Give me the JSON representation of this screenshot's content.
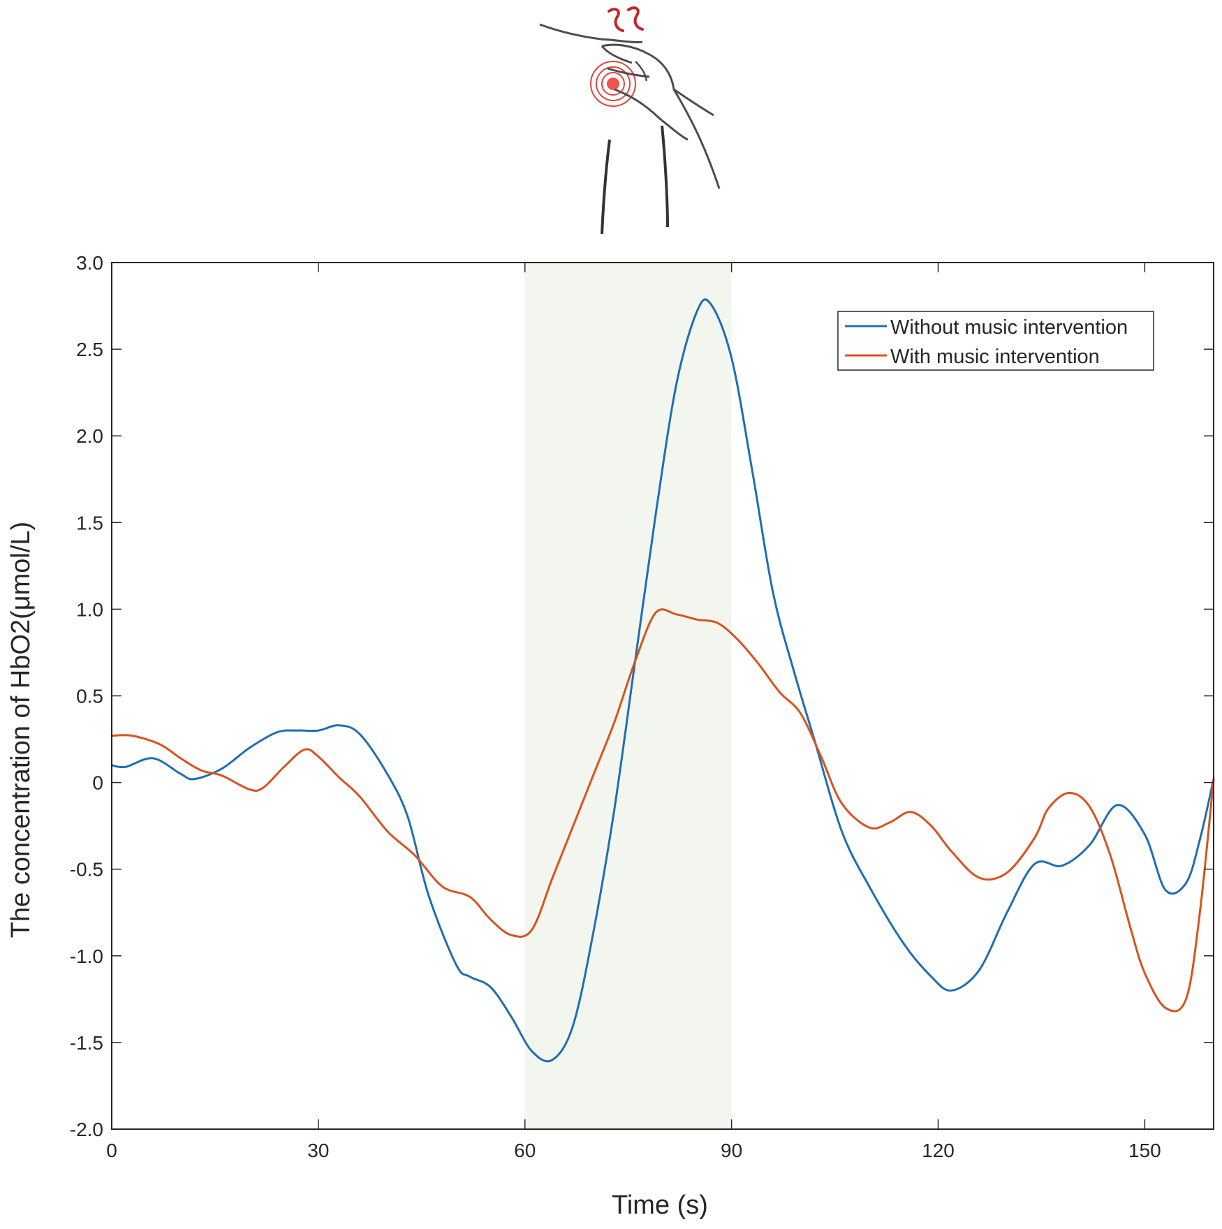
{
  "chart_data": {
    "type": "line",
    "xlabel": "Time (s)",
    "ylabel": "The concentration of  HbO2(μmol/L)",
    "xlim": [
      0,
      160
    ],
    "ylim": [
      -2.0,
      3.0
    ],
    "xticks": [
      0,
      30,
      60,
      90,
      120,
      150
    ],
    "xtick_labels": [
      "0",
      "30",
      "60",
      "90",
      "120",
      "150"
    ],
    "yticks": [
      3.0,
      2.5,
      2.0,
      1.5,
      1.0,
      0.5,
      0,
      -0.5,
      -1.0,
      -1.5,
      -2.0
    ],
    "ytick_labels": [
      "3.0",
      "2.5",
      "2.0",
      "1.5",
      "1.0",
      "0.5",
      "0",
      "-0.5",
      "-1.0",
      "-1.5",
      "-2.0"
    ],
    "grid": false,
    "legend_position": "top-right",
    "highlight_region": {
      "x_start": 60,
      "x_end": 90,
      "color": "#f3f6ef"
    },
    "series": [
      {
        "name": "Without music intervention",
        "color": "#1f6eb4",
        "x": [
          0,
          2,
          6,
          10,
          12,
          16,
          20,
          24,
          27,
          30,
          33,
          36,
          40,
          43,
          46,
          50,
          52,
          55,
          58,
          61,
          64,
          67,
          70,
          73,
          76,
          79,
          82,
          85,
          87,
          90,
          93,
          96,
          99,
          102,
          106,
          110,
          115,
          119,
          122,
          126,
          130,
          134,
          138,
          142,
          146,
          150,
          153,
          156,
          158,
          160
        ],
        "y": [
          0.1,
          0.09,
          0.14,
          0.05,
          0.02,
          0.08,
          0.2,
          0.29,
          0.3,
          0.3,
          0.33,
          0.28,
          0.05,
          -0.2,
          -0.65,
          -1.05,
          -1.12,
          -1.18,
          -1.35,
          -1.55,
          -1.6,
          -1.4,
          -0.85,
          -0.15,
          0.7,
          1.55,
          2.3,
          2.72,
          2.76,
          2.45,
          1.8,
          1.1,
          0.65,
          0.25,
          -0.28,
          -0.6,
          -0.93,
          -1.12,
          -1.2,
          -1.08,
          -0.75,
          -0.47,
          -0.48,
          -0.36,
          -0.13,
          -0.3,
          -0.62,
          -0.58,
          -0.33,
          0.02
        ]
      },
      {
        "name": "With music intervention",
        "color": "#d9531e",
        "x": [
          0,
          3,
          7,
          10,
          13,
          16,
          20,
          22,
          25,
          28,
          30,
          33,
          36,
          40,
          44,
          48,
          52,
          55,
          58,
          61,
          64,
          67,
          70,
          73,
          76,
          79,
          82,
          85,
          88,
          91,
          94,
          97,
          100,
          103,
          106,
          110,
          113,
          116,
          119,
          122,
          126,
          130,
          134,
          136,
          139,
          142,
          145,
          148,
          150,
          153,
          156,
          158,
          160
        ],
        "y": [
          0.27,
          0.27,
          0.22,
          0.14,
          0.07,
          0.04,
          -0.04,
          -0.03,
          0.09,
          0.19,
          0.15,
          0.03,
          -0.08,
          -0.28,
          -0.42,
          -0.6,
          -0.66,
          -0.79,
          -0.88,
          -0.85,
          -0.55,
          -0.25,
          0.05,
          0.35,
          0.7,
          0.98,
          0.97,
          0.94,
          0.92,
          0.82,
          0.68,
          0.52,
          0.4,
          0.15,
          -0.12,
          -0.26,
          -0.23,
          -0.17,
          -0.25,
          -0.4,
          -0.55,
          -0.52,
          -0.32,
          -0.15,
          -0.06,
          -0.14,
          -0.42,
          -0.85,
          -1.1,
          -1.3,
          -1.25,
          -0.75,
          0.02
        ]
      }
    ]
  }
}
